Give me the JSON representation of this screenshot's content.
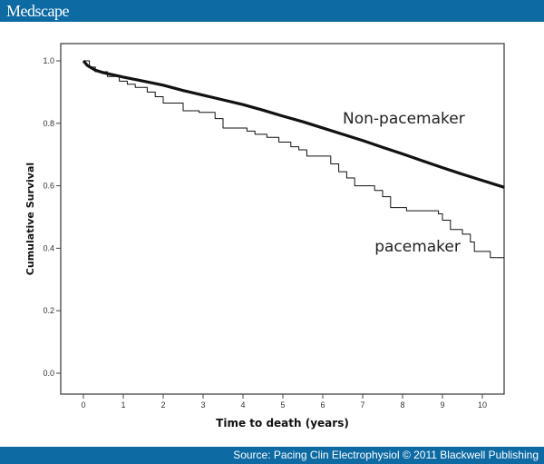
{
  "header": {
    "logo": "Medscape"
  },
  "footer": {
    "source": "Source: Pacing Clin Electrophysiol © 2011 Blackwell Publishing"
  },
  "chart_data": {
    "type": "line",
    "title": "",
    "xlabel": "Time to death (years)",
    "ylabel": "Cumulative Survival",
    "xlim": [
      -0.55,
      10.55
    ],
    "ylim": [
      -0.07,
      1.055
    ],
    "xticks": [
      "0",
      "1",
      "2",
      "3",
      "4",
      "5",
      "6",
      "7",
      "8",
      "9",
      "10"
    ],
    "yticks": [
      "0.0",
      "0.2",
      "0.4",
      "0.6",
      "0.8",
      "1.0"
    ],
    "grid": false,
    "series": [
      {
        "name": "Non-pacemaker",
        "style": "smooth",
        "x": [
          0,
          0.1,
          0.3,
          0.5,
          1,
          1.5,
          2,
          2.5,
          3,
          3.5,
          4,
          4.5,
          5,
          5.5,
          6,
          6.5,
          7,
          7.5,
          8,
          8.5,
          9,
          9.5,
          10,
          10.55
        ],
        "y": [
          1.0,
          0.985,
          0.97,
          0.962,
          0.948,
          0.935,
          0.922,
          0.905,
          0.89,
          0.875,
          0.86,
          0.842,
          0.823,
          0.805,
          0.785,
          0.765,
          0.745,
          0.723,
          0.702,
          0.68,
          0.658,
          0.637,
          0.617,
          0.595
        ]
      },
      {
        "name": "pacemaker",
        "style": "step",
        "x": [
          0,
          0.15,
          0.3,
          0.6,
          0.9,
          1.1,
          1.3,
          1.6,
          1.8,
          2.0,
          2.5,
          2.9,
          3.3,
          3.5,
          4.1,
          4.3,
          4.6,
          4.9,
          5.2,
          5.4,
          5.6,
          6.2,
          6.4,
          6.6,
          6.8,
          7.3,
          7.5,
          7.7,
          8.1,
          8.9,
          9.0,
          9.2,
          9.5,
          9.7,
          9.8,
          10.2,
          10.55
        ],
        "y": [
          1.0,
          0.98,
          0.965,
          0.95,
          0.935,
          0.925,
          0.915,
          0.9,
          0.885,
          0.865,
          0.84,
          0.835,
          0.815,
          0.785,
          0.775,
          0.765,
          0.755,
          0.74,
          0.725,
          0.715,
          0.695,
          0.67,
          0.645,
          0.625,
          0.6,
          0.585,
          0.565,
          0.53,
          0.52,
          0.51,
          0.49,
          0.46,
          0.445,
          0.42,
          0.39,
          0.37,
          0.37
        ]
      }
    ],
    "annotations": [
      {
        "text": "Non-pacemaker",
        "x": 6.5,
        "y": 0.8
      },
      {
        "text": "pacemaker",
        "x": 7.3,
        "y": 0.39
      }
    ]
  }
}
